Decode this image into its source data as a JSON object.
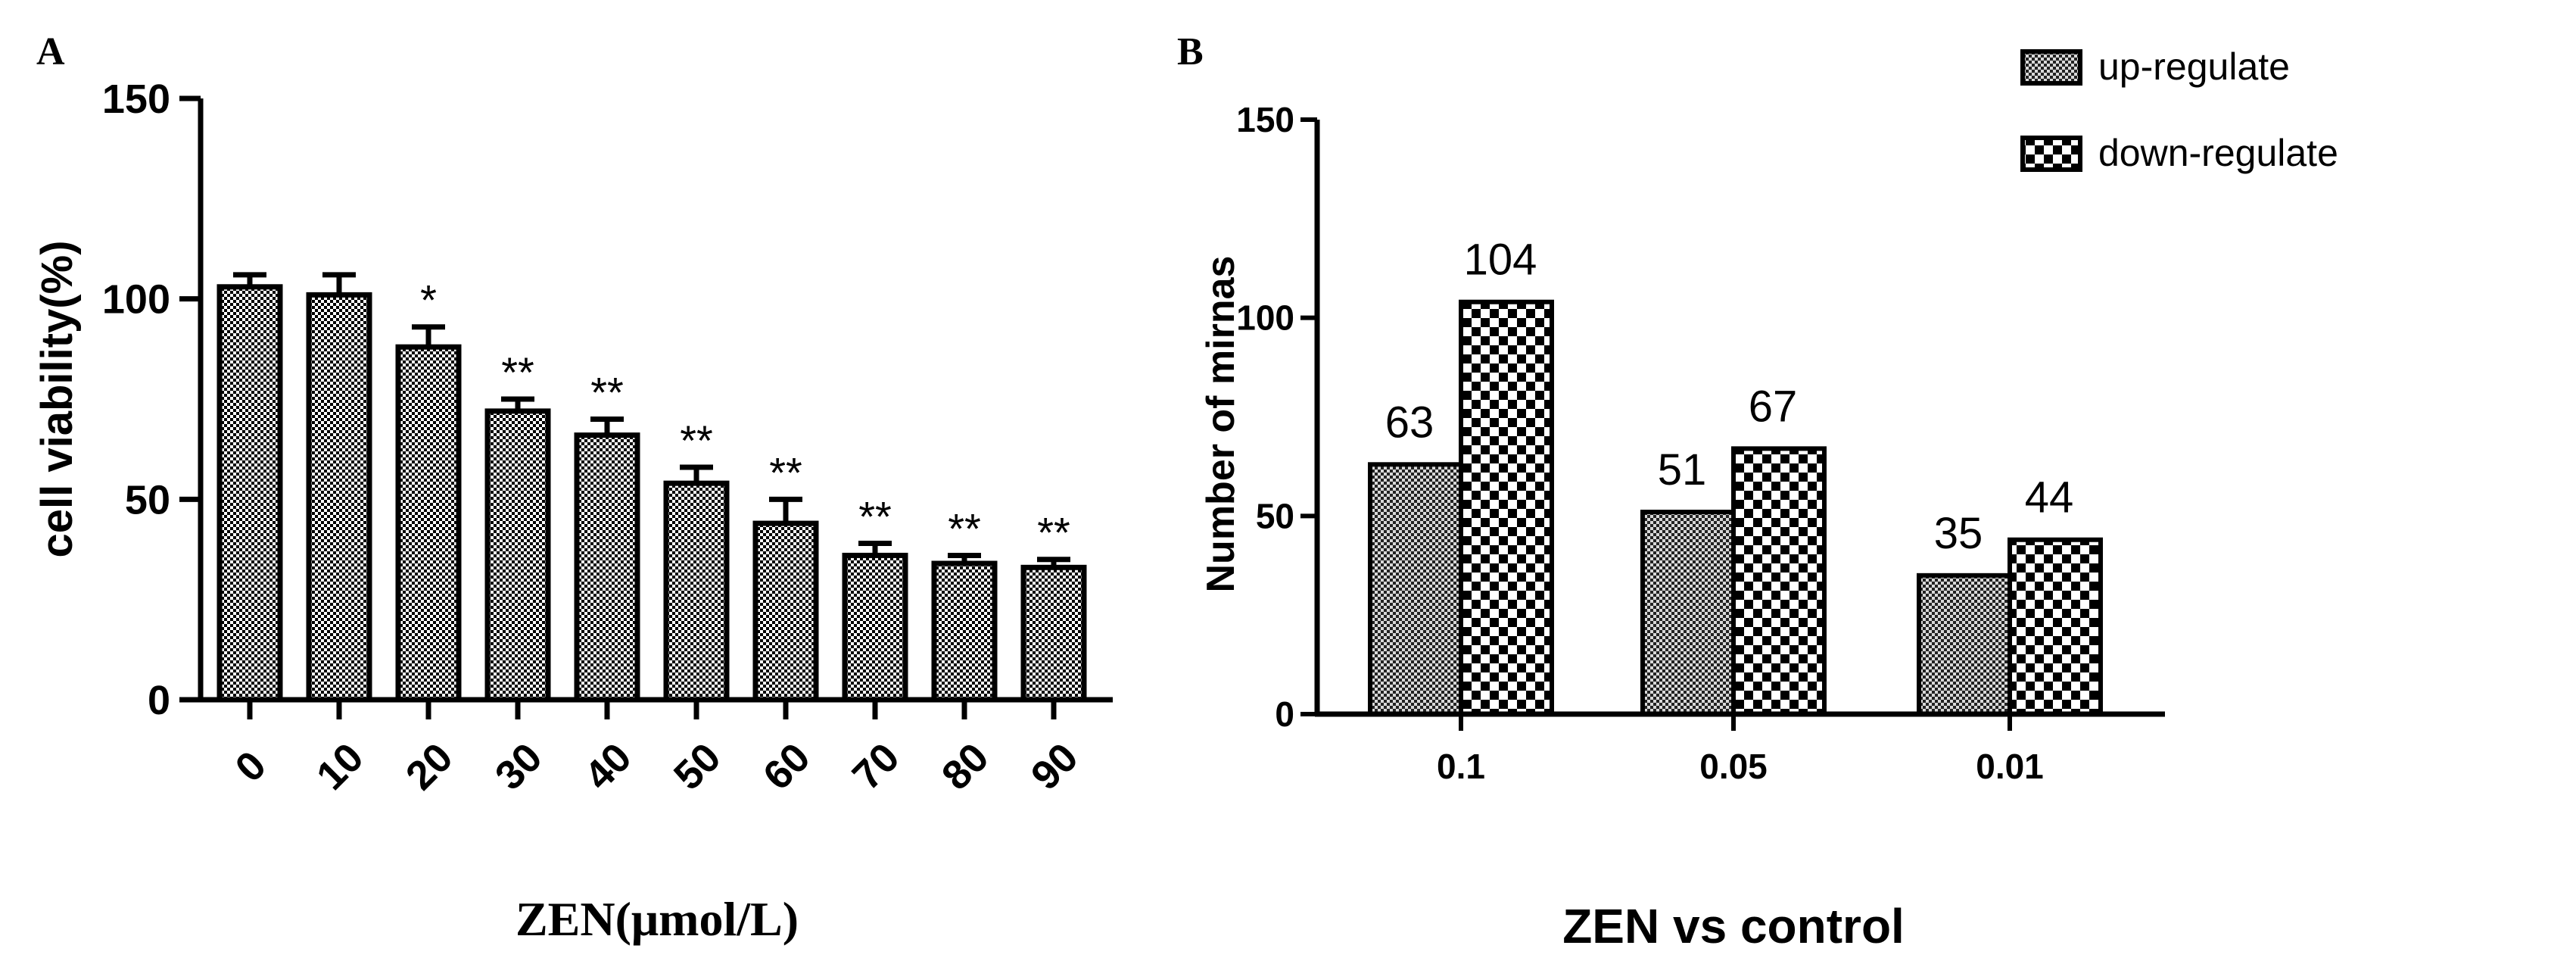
{
  "chart_data": [
    {
      "panel": "A",
      "type": "bar",
      "title": "",
      "xlabel": "ZEN(μmol/L)",
      "ylabel": "cell viability(%)",
      "ylim": [
        0,
        150
      ],
      "yticks": [
        "0",
        "50",
        "100",
        "150"
      ],
      "categories": [
        "0",
        "10",
        "20",
        "30",
        "40",
        "50",
        "60",
        "70",
        "80",
        "90"
      ],
      "values": [
        103,
        101,
        88,
        72,
        66,
        54,
        44,
        36,
        34,
        33
      ],
      "errors": [
        3,
        5,
        5,
        3,
        4,
        4,
        6,
        3,
        2,
        2
      ],
      "annotations": [
        "",
        "",
        "*",
        "**",
        "**",
        "**",
        "**",
        "**",
        "**",
        "**"
      ]
    },
    {
      "panel": "B",
      "type": "bar",
      "title": "",
      "xlabel": "ZEN vs control",
      "ylabel": "Number of mirnas",
      "ylim": [
        0,
        150
      ],
      "yticks": [
        "0",
        "50",
        "100",
        "150"
      ],
      "categories": [
        "0.1",
        "0.05",
        "0.01"
      ],
      "series": [
        {
          "name": "up-regulate",
          "values": [
            63,
            51,
            35
          ],
          "labels": [
            "63",
            "51",
            "35"
          ]
        },
        {
          "name": "down-regulate",
          "values": [
            104,
            67,
            44
          ],
          "labels": [
            "104",
            "67",
            "44"
          ]
        }
      ],
      "legend_position": "top-right"
    }
  ]
}
